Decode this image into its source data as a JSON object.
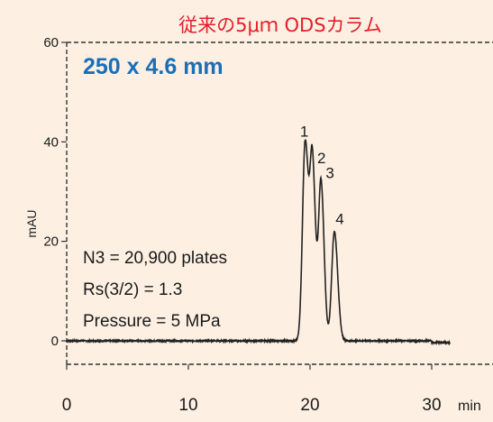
{
  "chart_data": {
    "type": "line",
    "title": "従来の5μｍ ODSカラム",
    "subtitle": "250 x 4.6 mm",
    "ylabel": "mAU",
    "x_unit": "min",
    "xlim": [
      0,
      30
    ],
    "ylim": [
      -5,
      60
    ],
    "x_ticks": [
      0,
      10,
      20,
      30
    ],
    "y_ticks": [
      0,
      20,
      40,
      60
    ],
    "x_tick_labels": [
      "0",
      "10",
      "20",
      "30"
    ],
    "y_tick_labels": [
      "0",
      "20",
      "40",
      "60"
    ],
    "grid": false,
    "baseline": 0,
    "peaks": [
      {
        "label": "1",
        "rt": 19.6,
        "height": 40
      },
      {
        "label": "2",
        "rt": 20.2,
        "height": 35
      },
      {
        "label": "3",
        "rt": 20.9,
        "height": 32
      },
      {
        "label": "4",
        "rt": 22.0,
        "height": 22
      }
    ],
    "annotations": [
      "N3 = 20,900 plates",
      "Rs(3/2) = 1.3",
      "Pressure = 5 MPa"
    ],
    "colors": {
      "title": "#e51e2a",
      "subtitle": "#1a6fb8",
      "trace": "#222222"
    }
  }
}
